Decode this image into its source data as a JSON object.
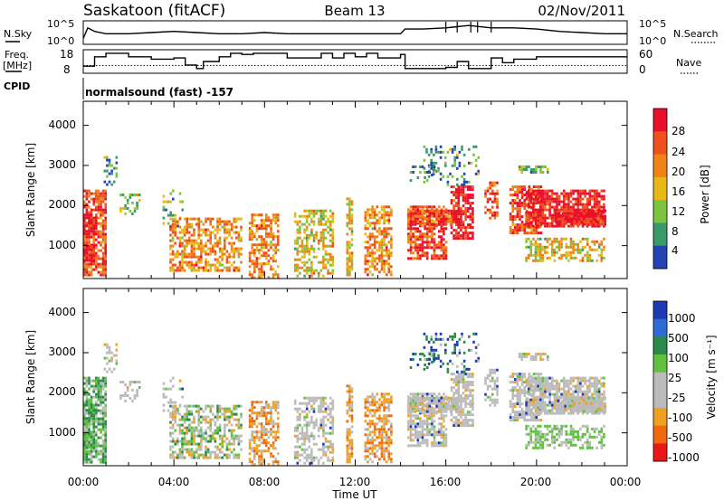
{
  "header": {
    "station": "Saskatoon (fitACF)",
    "beam": "Beam 13",
    "date": "02/Nov/2011"
  },
  "sky_panel": {
    "left_label": "N.Sky",
    "right_label": "N.Search",
    "left_ticks": [
      "10^5",
      "10^0"
    ],
    "right_ticks": [
      "10^5",
      "10^0"
    ]
  },
  "freq_panel": {
    "left_label_line1": "Freq.",
    "left_label_line2": "[MHz]",
    "right_label": "Nave",
    "left_ticks": [
      "18",
      "8"
    ],
    "right_ticks": [
      "60",
      "0"
    ]
  },
  "cpid": {
    "label": "CPID",
    "value": "normalsound (fast) -157"
  },
  "chart_data": [
    {
      "type": "line",
      "name": "N.Sky / N.Search",
      "x_hours": [
        0,
        0.2,
        0.5,
        1,
        2,
        3,
        4,
        5,
        6,
        7,
        8,
        9,
        10,
        11,
        12,
        13,
        14,
        14.2,
        15,
        16,
        16.5,
        17,
        18,
        19,
        20,
        21,
        22,
        23,
        24
      ],
      "sky_fraction": [
        0.25,
        0.7,
        0.55,
        0.45,
        0.45,
        0.5,
        0.55,
        0.5,
        0.45,
        0.45,
        0.5,
        0.45,
        0.45,
        0.45,
        0.45,
        0.45,
        0.45,
        0.65,
        0.65,
        0.7,
        0.75,
        0.8,
        0.7,
        0.7,
        0.65,
        0.55,
        0.5,
        0.45,
        0.45
      ]
    },
    {
      "type": "line",
      "name": "Freq / Nave",
      "x_hours": [
        0,
        0.5,
        1,
        2,
        3,
        4,
        4.5,
        5,
        5.3,
        6,
        6.5,
        7,
        7.5,
        9,
        10.5,
        11,
        11.5,
        12,
        12.5,
        13,
        14,
        14.2,
        16,
        16.5,
        17,
        18,
        18.5,
        19,
        20,
        21,
        22,
        23
      ],
      "freq_mhz": [
        11,
        15,
        16.5,
        15,
        14,
        14.5,
        11.5,
        10,
        13,
        15,
        16.5,
        16,
        16.5,
        14.5,
        16.5,
        14.5,
        16.5,
        15,
        16.5,
        14.5,
        16,
        10,
        10.5,
        13,
        10,
        14.5,
        12.5,
        14,
        15,
        15,
        15,
        15
      ],
      "nave_dotted": 20,
      "left_ylim": [
        8,
        18
      ],
      "right_ylim": [
        0,
        60
      ]
    },
    {
      "type": "heatmap",
      "name": "Power",
      "ylabel": "Slant Range [km]",
      "xlim_hours": [
        0,
        24
      ],
      "ylim_km": [
        180,
        4600
      ],
      "yticks": [
        "4000",
        "3000",
        "2000",
        "1000"
      ],
      "colorbar": {
        "label": "Power [dB]",
        "ticks": [
          "28",
          "24",
          "20",
          "16",
          "12",
          "8",
          "4"
        ]
      },
      "colors": [
        "#e8102a",
        "#f0501c",
        "#f08218",
        "#e8b818",
        "#7cc43c",
        "#3a9a6a",
        "#2244b4"
      ]
    },
    {
      "type": "heatmap",
      "name": "Velocity",
      "ylabel": "Slant Range [km]",
      "xlabel": "Time UT",
      "xticks": [
        "00:00",
        "04:00",
        "08:00",
        "12:00",
        "16:00",
        "20:00",
        "00:00"
      ],
      "xlim_hours": [
        0,
        24
      ],
      "ylim_km": [
        180,
        4600
      ],
      "yticks": [
        "4000",
        "3000",
        "2000",
        "1000"
      ],
      "colorbar": {
        "label": "Velocity [m s⁻¹]",
        "ticks": [
          "1000",
          "500",
          "100",
          "25",
          "-25",
          "-100",
          "-500",
          "-1000"
        ]
      },
      "colors": [
        "#1c3ab4",
        "#2c6cd4",
        "#2a8a4a",
        "#60c040",
        "#bbbbbb",
        "#bbbbbb",
        "#f0a020",
        "#f06810",
        "#e81818"
      ]
    }
  ]
}
